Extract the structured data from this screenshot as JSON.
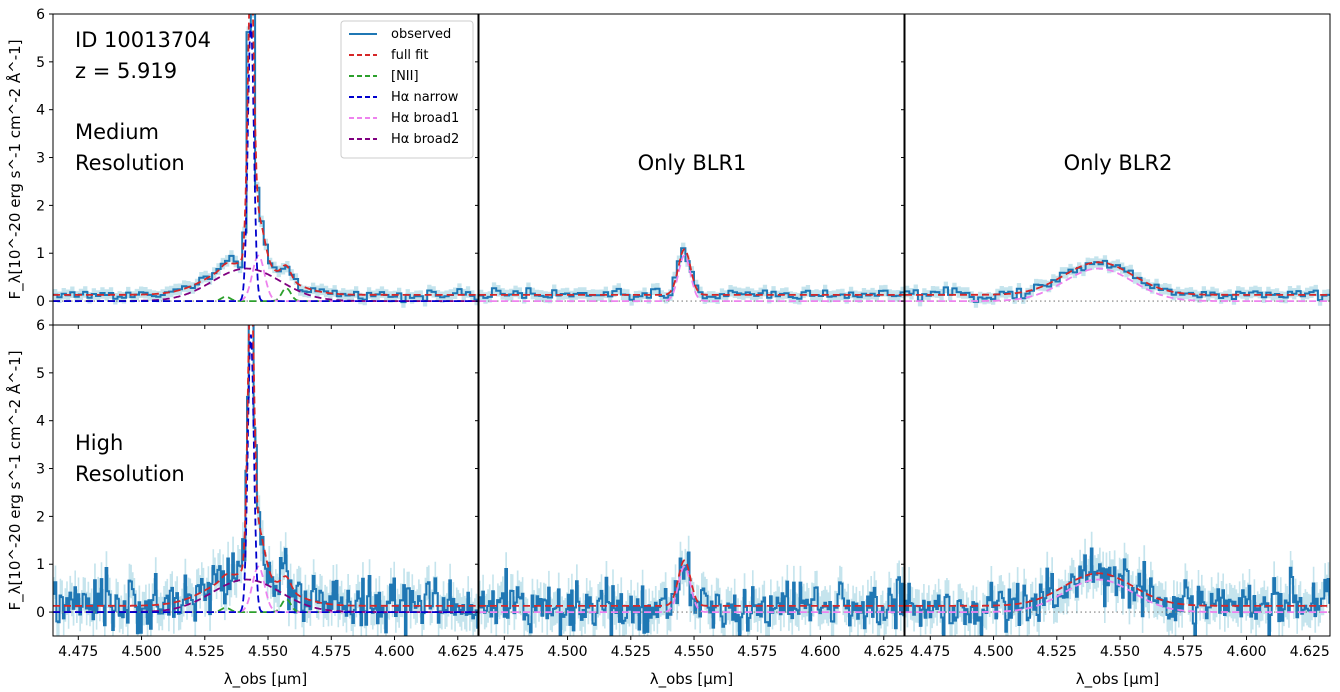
{
  "chart_data": {
    "type": "line",
    "layout": "2x3 grid of panels, shared axes",
    "xlabel": "λ_obs [µm]",
    "ylabel": "F_λ[10^-20 erg s^-1 cm^-2 Å^-1]",
    "xlim": [
      4.465,
      4.633
    ],
    "ylim": [
      -0.5,
      6
    ],
    "x_ticks": [
      "4.475",
      "4.500",
      "4.525",
      "4.550",
      "4.575",
      "4.600",
      "4.625"
    ],
    "y_ticks": [
      "0",
      "1",
      "2",
      "3",
      "4",
      "5",
      "6"
    ],
    "annotations": {
      "id": "ID 10013704",
      "redshift": "z = 5.919",
      "row1_label": [
        "Medium",
        "Resolution"
      ],
      "row2_label": [
        "High",
        "Resolution"
      ],
      "col2_title": "Only BLR1",
      "col3_title": "Only BLR2"
    },
    "legend": {
      "position": "upper-right of top-left panel",
      "entries": [
        {
          "label": "observed",
          "color": "#1f77b4",
          "style": "solid"
        },
        {
          "label": "full fit",
          "color": "#d62728",
          "style": "dashed"
        },
        {
          "label": "[NII]",
          "color": "#2ca02c",
          "style": "dashed"
        },
        {
          "label": "Hα narrow",
          "color": "#0000cd",
          "style": "dashed"
        },
        {
          "label": "Hα broad1",
          "color": "#ee82ee",
          "style": "dashed"
        },
        {
          "label": "Hα broad2",
          "color": "#800080",
          "style": "dashed"
        }
      ]
    },
    "model_components": {
      "continuum": 0.13,
      "halpha_narrow": {
        "center": 4.5432,
        "amplitude": 5.8,
        "sigma": 0.0012
      },
      "nii_6585": {
        "center": 4.5572,
        "amplitude": 0.27,
        "sigma": 0.0018
      },
      "nii_6550": {
        "center": 4.5333,
        "amplitude": 0.09,
        "sigma": 0.0018
      },
      "halpha_broad1": {
        "center": 4.5462,
        "amplitude": 0.95,
        "sigma": 0.0024
      },
      "halpha_broad2": {
        "center": 4.5415,
        "amplitude": 0.68,
        "sigma": 0.0135
      }
    },
    "panels": [
      {
        "row": "Medium Resolution",
        "column": "full",
        "observed_noise_sigma": 0.1,
        "bin_width": 0.0017,
        "components": [
          "full fit",
          "[NII]",
          "Hα narrow",
          "Hα broad1",
          "Hα broad2"
        ]
      },
      {
        "row": "Medium Resolution",
        "column": "Only BLR1",
        "observed_noise_sigma": 0.1,
        "bin_width": 0.0017,
        "components": [
          "full fit",
          "Hα broad1"
        ]
      },
      {
        "row": "Medium Resolution",
        "column": "Only BLR2",
        "observed_noise_sigma": 0.1,
        "bin_width": 0.0017,
        "components": [
          "full fit",
          "Hα broad2"
        ]
      },
      {
        "row": "High Resolution",
        "column": "full",
        "observed_noise_sigma": 0.45,
        "bin_width": 0.00065,
        "components": [
          "full fit",
          "[NII]",
          "Hα narrow",
          "Hα broad1",
          "Hα broad2"
        ]
      },
      {
        "row": "High Resolution",
        "column": "Only BLR1",
        "observed_noise_sigma": 0.45,
        "bin_width": 0.00065,
        "components": [
          "full fit",
          "Hα broad1"
        ]
      },
      {
        "row": "High Resolution",
        "column": "Only BLR2",
        "observed_noise_sigma": 0.45,
        "bin_width": 0.00065,
        "components": [
          "full fit",
          "Hα broad2"
        ]
      }
    ]
  },
  "colors": {
    "observed": "#1f77b4",
    "error_band": "#add8e6",
    "full_fit": "#d62728",
    "nii": "#2ca02c",
    "ha_narrow": "#0000cd",
    "ha_broad1": "#ee82ee",
    "ha_broad2": "#800080",
    "zero_line": "#808080"
  }
}
